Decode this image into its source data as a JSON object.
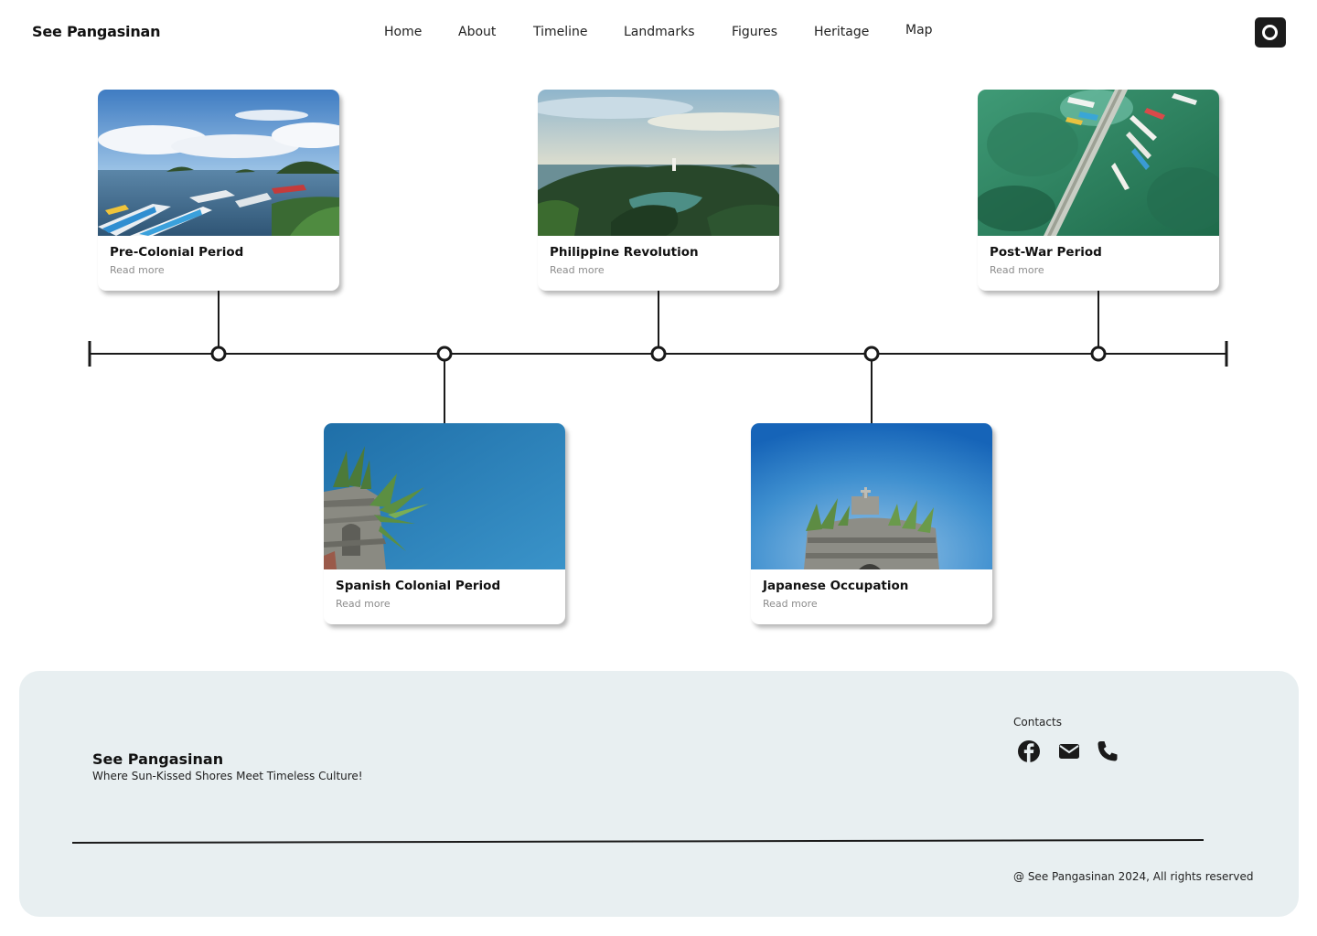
{
  "header": {
    "brand": "See Pangasinan",
    "nav": [
      "Home",
      "About",
      "Timeline",
      "Landmarks",
      "Figures",
      "Heritage",
      "Map"
    ],
    "profile_icon": "record-circle-icon"
  },
  "timeline": {
    "cards": [
      {
        "title": "Pre-Colonial Period",
        "link": "Read more",
        "image": "sea-with-boats-and-islets-photo"
      },
      {
        "title": "Spanish Colonial Period",
        "link": "Read more",
        "image": "old-church-ruin-against-blue-sky-photo"
      },
      {
        "title": "Philippine Revolution",
        "link": "Read more",
        "image": "green-islands-with-lighthouse-photo"
      },
      {
        "title": "Japanese Occupation",
        "link": "Read more",
        "image": "church-belfry-against-blue-sky-photo"
      },
      {
        "title": "Post-War Period",
        "link": "Read more",
        "image": "aerial-pier-with-boats-photo"
      }
    ]
  },
  "footer": {
    "brand": "See Pangasinan",
    "tagline": "Where Sun-Kissed Shores Meet Timeless Culture!",
    "contacts_label": "Contacts",
    "contact_icons": [
      "facebook-icon",
      "mail-icon",
      "phone-icon"
    ],
    "copyright": "@ See Pangasinan 2024, All rights reserved"
  },
  "colors": {
    "text": "#111111",
    "muted": "#8c8c8c",
    "footer_bg": "#e8eff1",
    "accent_dark": "#1b1b1b"
  }
}
